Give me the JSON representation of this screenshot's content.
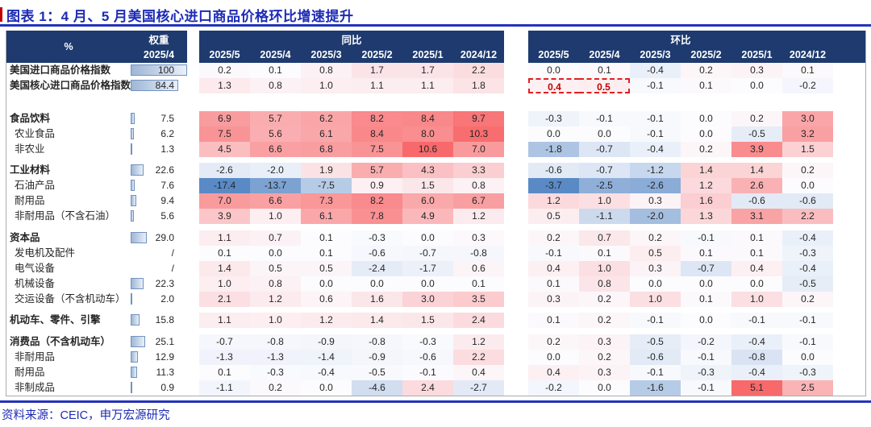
{
  "title": "图表 1：4 月、5 月美国核心进口商品价格环比增速提升",
  "source": "资料来源：CEIC，申万宏源研究",
  "colors": {
    "title_blue": "#1c2bb5",
    "rule_blue": "#2433bb",
    "header_navy": "#1e3a6e",
    "highlight_red": "#c00000",
    "scale_negative": "#5a8ac6",
    "scale_mid": "#fcfcff",
    "scale_positive": "#f8696b",
    "bar_border": "#7293bf"
  },
  "chart_data": {
    "type": "table",
    "unit_label": "%",
    "weight_header": "权重",
    "weight_period": "2025/4",
    "yoy_header": "同比",
    "mom_header": "环比",
    "periods": [
      "2025/5",
      "2025/4",
      "2025/3",
      "2025/2",
      "2025/1",
      "2024/12"
    ],
    "rows": [
      {
        "name": "美国进口商品价格指数",
        "weight": "100",
        "bold": true,
        "indent": 0,
        "yoy": [
          0.2,
          0.1,
          0.8,
          1.7,
          1.7,
          2.2
        ],
        "mom": [
          0.0,
          0.1,
          -0.4,
          0.2,
          0.3,
          0.1
        ]
      },
      {
        "name": "美国核心进口商品价格指数",
        "weight": "84.4",
        "bold": true,
        "indent": 0,
        "yoy": [
          1.3,
          0.8,
          1.0,
          1.1,
          1.1,
          1.8
        ],
        "mom": [
          0.4,
          0.5,
          -0.1,
          0.1,
          0.0,
          -0.2
        ],
        "mom_highlight": [
          0,
          1
        ]
      },
      {
        "spacer": 22
      },
      {
        "name": "食品饮料",
        "weight": "7.5",
        "bold": true,
        "indent": 0,
        "yoy": [
          6.9,
          5.7,
          6.2,
          8.2,
          8.4,
          9.7
        ],
        "mom": [
          -0.3,
          -0.1,
          -0.1,
          0.0,
          0.2,
          3.0
        ]
      },
      {
        "name": "农业食品",
        "weight": "6.2",
        "bold": false,
        "indent": 1,
        "yoy": [
          7.5,
          5.6,
          6.1,
          8.4,
          8.0,
          10.3
        ],
        "mom": [
          0.0,
          0.0,
          -0.1,
          0.0,
          -0.5,
          3.2
        ]
      },
      {
        "name": "非农业",
        "weight": "1.3",
        "bold": false,
        "indent": 1,
        "yoy": [
          4.5,
          6.6,
          6.8,
          7.5,
          10.6,
          7.0
        ],
        "mom": [
          -1.8,
          -0.7,
          -0.4,
          0.2,
          3.9,
          1.5
        ]
      },
      {
        "spacer": 7
      },
      {
        "name": "工业材料",
        "weight": "22.6",
        "bold": true,
        "indent": 0,
        "yoy": [
          -2.6,
          -2.0,
          1.9,
          5.7,
          4.3,
          3.3
        ],
        "mom": [
          -0.6,
          -0.7,
          -1.2,
          1.4,
          1.4,
          0.2
        ]
      },
      {
        "name": "石油产品",
        "weight": "7.6",
        "bold": false,
        "indent": 1,
        "yoy": [
          -17.4,
          -13.7,
          -7.5,
          0.9,
          1.5,
          0.8
        ],
        "mom": [
          -3.7,
          -2.5,
          -2.6,
          1.2,
          2.6,
          0.0
        ]
      },
      {
        "name": "耐用品",
        "weight": "9.4",
        "bold": false,
        "indent": 1,
        "yoy": [
          7.0,
          6.6,
          7.3,
          8.2,
          6.0,
          6.7
        ],
        "mom": [
          1.2,
          1.0,
          0.3,
          1.6,
          -0.6,
          -0.6
        ]
      },
      {
        "name": "非耐用品（不含石油）",
        "weight": "5.6",
        "bold": false,
        "indent": 1,
        "yoy": [
          3.9,
          1.0,
          6.1,
          7.8,
          4.9,
          1.2
        ],
        "mom": [
          0.5,
          -1.1,
          -2.0,
          1.3,
          3.1,
          2.2
        ]
      },
      {
        "spacer": 8
      },
      {
        "name": "资本品",
        "weight": "29.0",
        "bold": true,
        "indent": 0,
        "yoy": [
          1.1,
          0.7,
          0.1,
          -0.3,
          0.0,
          0.3
        ],
        "mom": [
          0.2,
          0.7,
          0.2,
          -0.1,
          0.1,
          -0.4
        ]
      },
      {
        "name": "发电机及配件",
        "weight": "/",
        "bold": false,
        "indent": 1,
        "yoy": [
          0.1,
          0.0,
          0.1,
          -0.6,
          -0.7,
          -0.8
        ],
        "mom": [
          -0.1,
          0.1,
          0.5,
          0.1,
          0.1,
          -0.3
        ]
      },
      {
        "name": "电气设备",
        "weight": "/",
        "bold": false,
        "indent": 1,
        "yoy": [
          1.4,
          0.5,
          0.5,
          -2.4,
          -1.7,
          0.6
        ],
        "mom": [
          0.4,
          1.0,
          0.3,
          -0.7,
          0.4,
          -0.4
        ]
      },
      {
        "name": "机械设备",
        "weight": "22.3",
        "bold": false,
        "indent": 1,
        "yoy": [
          1.0,
          0.8,
          0.0,
          0.0,
          0.0,
          0.1
        ],
        "mom": [
          0.1,
          0.8,
          0.0,
          0.0,
          0.0,
          -0.5
        ]
      },
      {
        "name": "交运设备（不含机动车）",
        "weight": "2.0",
        "bold": false,
        "indent": 1,
        "yoy": [
          2.1,
          1.2,
          0.6,
          1.6,
          3.0,
          3.5
        ],
        "mom": [
          0.3,
          0.2,
          1.0,
          0.1,
          1.0,
          0.2
        ]
      },
      {
        "spacer": 7
      },
      {
        "name": "机动车、零件、引擎",
        "weight": "15.8",
        "bold": true,
        "indent": 0,
        "yoy": [
          1.1,
          1.0,
          1.2,
          1.4,
          1.5,
          2.4
        ],
        "mom": [
          0.1,
          0.2,
          -0.1,
          0.0,
          -0.1,
          -0.1
        ]
      },
      {
        "spacer": 8
      },
      {
        "name": "消费品（不含机动车）",
        "weight": "25.1",
        "bold": true,
        "indent": 0,
        "yoy": [
          -0.7,
          -0.8,
          -0.9,
          -0.8,
          -0.3,
          1.2
        ],
        "mom": [
          0.2,
          0.3,
          -0.5,
          -0.2,
          -0.4,
          -0.1
        ]
      },
      {
        "name": "非耐用品",
        "weight": "12.9",
        "bold": false,
        "indent": 1,
        "yoy": [
          -1.3,
          -1.3,
          -1.4,
          -0.9,
          -0.6,
          2.2
        ],
        "mom": [
          0.0,
          0.2,
          -0.6,
          -0.1,
          -0.8,
          0.0
        ]
      },
      {
        "name": "耐用品",
        "weight": "11.3",
        "bold": false,
        "indent": 1,
        "yoy": [
          0.1,
          -0.3,
          -0.4,
          -0.5,
          -0.1,
          0.4
        ],
        "mom": [
          0.4,
          0.3,
          -0.1,
          -0.3,
          -0.4,
          -0.3
        ]
      },
      {
        "name": "非制成品",
        "weight": "0.9",
        "bold": false,
        "indent": 1,
        "yoy": [
          -1.1,
          0.2,
          0.0,
          -4.6,
          2.4,
          -2.7
        ],
        "mom": [
          -0.2,
          0.0,
          -1.6,
          -0.1,
          5.1,
          2.5
        ]
      }
    ]
  }
}
